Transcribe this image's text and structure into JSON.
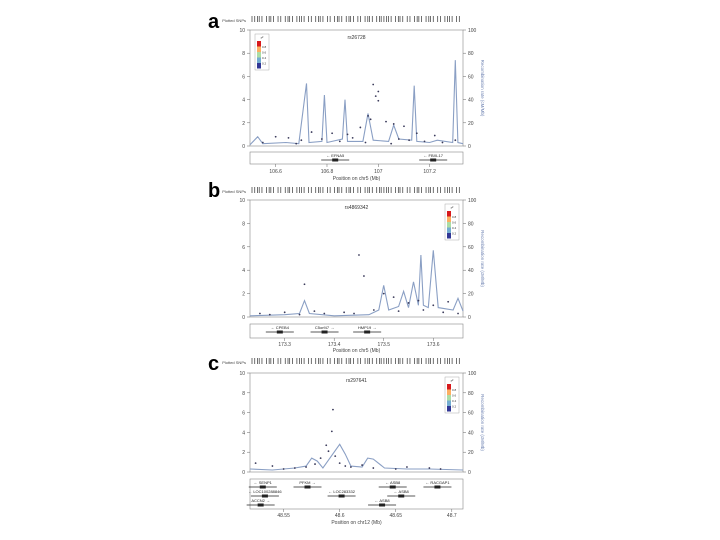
{
  "panels": [
    {
      "letter": "a",
      "snp_label": "Plotted SNPs",
      "lead_snp": "rs26728",
      "y_left_ticks": [
        "0",
        "2",
        "4",
        "6",
        "8",
        "10"
      ],
      "y_right_ticks": [
        "0",
        "20",
        "40",
        "60",
        "80",
        "100"
      ],
      "y_right_label": "Recombination rate (cM/Mb)",
      "legend_title": "r²",
      "legend_ticks": [
        "0.8",
        "0.6",
        "0.4",
        "0.2"
      ],
      "x_ticks": [
        "106.6",
        "106.8",
        "107",
        "107.2"
      ],
      "xlabel": "Position on chr5 (Mb)",
      "genes": [
        {
          "name": "EFNA5",
          "x": 0.4,
          "row": 0,
          "dir": "left"
        },
        {
          "name": "FBXL17",
          "x": 0.86,
          "row": 0,
          "dir": "left"
        }
      ]
    },
    {
      "letter": "b",
      "snp_label": "Plotted SNPs",
      "lead_snp": "rs4869342",
      "y_left_ticks": [
        "0",
        "2",
        "4",
        "6",
        "8",
        "10"
      ],
      "y_right_ticks": [
        "0",
        "20",
        "40",
        "60",
        "80",
        "100"
      ],
      "y_right_label": "Recombination rate (cM/Mb)",
      "legend_title": "r²",
      "legend_ticks": [
        "0.8",
        "0.6",
        "0.4",
        "0.2"
      ],
      "x_ticks": [
        "173.3",
        "173.4",
        "173.5",
        "173.6"
      ],
      "xlabel": "Position on chr5 (Mb)",
      "genes": [
        {
          "name": "CPEB4",
          "x": 0.14,
          "row": 0,
          "dir": "left"
        },
        {
          "name": "C5orf47",
          "x": 0.35,
          "row": 0,
          "dir": "right"
        },
        {
          "name": "HMP19",
          "x": 0.55,
          "row": 0,
          "dir": "right"
        }
      ]
    },
    {
      "letter": "c",
      "snp_label": "Plotted SNPs",
      "lead_snp": "rs297641",
      "y_left_ticks": [
        "0",
        "2",
        "4",
        "6",
        "8",
        "10"
      ],
      "y_right_ticks": [
        "0",
        "20",
        "40",
        "60",
        "80",
        "100"
      ],
      "y_right_label": "Recombination rate (cM/Mb)",
      "legend_title": "r²",
      "legend_ticks": [
        "0.8",
        "0.6",
        "0.4",
        "0.2"
      ],
      "x_ticks": [
        "48.55",
        "48.6",
        "48.65",
        "48.7"
      ],
      "xlabel": "Position on chr12 (Mb)",
      "genes": [
        {
          "name": "SENP1",
          "x": 0.06,
          "row": 0,
          "dir": "left"
        },
        {
          "name": "PFKM",
          "x": 0.27,
          "row": 0,
          "dir": "right"
        },
        {
          "name": "ASB8",
          "x": 0.67,
          "row": 0,
          "dir": "left"
        },
        {
          "name": "RACGAP1",
          "x": 0.88,
          "row": 0,
          "dir": "left"
        },
        {
          "name": "LOC100288846",
          "x": 0.07,
          "row": 1,
          "dir": "left"
        },
        {
          "name": "LOC283332",
          "x": 0.43,
          "row": 1,
          "dir": "left"
        },
        {
          "name": "ASB8",
          "x": 0.71,
          "row": 1,
          "dir": "left"
        },
        {
          "name": "ACCN2",
          "x": 0.05,
          "row": 2,
          "dir": "right"
        },
        {
          "name": "ASB8",
          "x": 0.62,
          "row": 2,
          "dir": "left"
        }
      ]
    }
  ],
  "legend_colors": [
    "#d7191c",
    "#fdae61",
    "#abdda4",
    "#74add1",
    "#313695"
  ],
  "dot_color": "#3a3a5a",
  "line_color": "#8a9fc4",
  "chart_data": [
    {
      "type": "scatter",
      "xlabel": "Position on chr5 (Mb)",
      "xlim": [
        106.5,
        107.33
      ],
      "ylim": [
        0,
        10
      ],
      "y2lim": [
        0,
        100
      ],
      "points": [
        {
          "x": 106.98,
          "y": 5.3
        },
        {
          "x": 107.0,
          "y": 4.7
        },
        {
          "x": 106.99,
          "y": 4.3
        },
        {
          "x": 107.0,
          "y": 3.9
        },
        {
          "x": 106.96,
          "y": 2.6
        },
        {
          "x": 106.97,
          "y": 2.3
        },
        {
          "x": 107.03,
          "y": 2.1
        },
        {
          "x": 107.06,
          "y": 1.9
        },
        {
          "x": 106.93,
          "y": 1.6
        },
        {
          "x": 107.1,
          "y": 1.7
        },
        {
          "x": 106.74,
          "y": 1.2
        },
        {
          "x": 106.82,
          "y": 1.1
        },
        {
          "x": 106.88,
          "y": 1.0
        },
        {
          "x": 107.15,
          "y": 1.1
        },
        {
          "x": 107.22,
          "y": 0.9
        },
        {
          "x": 106.6,
          "y": 0.8
        },
        {
          "x": 106.65,
          "y": 0.7
        },
        {
          "x": 106.7,
          "y": 0.5
        },
        {
          "x": 106.78,
          "y": 0.6
        },
        {
          "x": 106.85,
          "y": 0.4
        },
        {
          "x": 106.9,
          "y": 0.7
        },
        {
          "x": 107.08,
          "y": 0.6
        },
        {
          "x": 107.12,
          "y": 0.5
        },
        {
          "x": 107.18,
          "y": 0.4
        },
        {
          "x": 107.25,
          "y": 0.3
        },
        {
          "x": 107.3,
          "y": 0.5
        },
        {
          "x": 106.55,
          "y": 0.3
        },
        {
          "x": 106.68,
          "y": 0.2
        },
        {
          "x": 106.95,
          "y": 0.3
        },
        {
          "x": 107.05,
          "y": 0.2
        }
      ],
      "recomb": [
        {
          "x": 106.5,
          "y": 1
        },
        {
          "x": 106.53,
          "y": 8
        },
        {
          "x": 106.55,
          "y": 2
        },
        {
          "x": 106.64,
          "y": 3
        },
        {
          "x": 106.69,
          "y": 2
        },
        {
          "x": 106.72,
          "y": 54
        },
        {
          "x": 106.73,
          "y": 3
        },
        {
          "x": 106.78,
          "y": 4
        },
        {
          "x": 106.79,
          "y": 44
        },
        {
          "x": 106.8,
          "y": 3
        },
        {
          "x": 106.86,
          "y": 6
        },
        {
          "x": 106.87,
          "y": 40
        },
        {
          "x": 106.88,
          "y": 4
        },
        {
          "x": 106.94,
          "y": 4
        },
        {
          "x": 106.96,
          "y": 28
        },
        {
          "x": 106.98,
          "y": 5
        },
        {
          "x": 107.04,
          "y": 4
        },
        {
          "x": 107.06,
          "y": 18
        },
        {
          "x": 107.08,
          "y": 6
        },
        {
          "x": 107.13,
          "y": 5
        },
        {
          "x": 107.14,
          "y": 52
        },
        {
          "x": 107.15,
          "y": 4
        },
        {
          "x": 107.2,
          "y": 3
        },
        {
          "x": 107.23,
          "y": 5
        },
        {
          "x": 107.29,
          "y": 3
        },
        {
          "x": 107.3,
          "y": 74
        },
        {
          "x": 107.31,
          "y": 3
        },
        {
          "x": 107.33,
          "y": 2
        }
      ]
    },
    {
      "type": "scatter",
      "xlabel": "Position on chr5 (Mb)",
      "xlim": [
        173.23,
        173.66
      ],
      "ylim": [
        0,
        10
      ],
      "y2lim": [
        0,
        100
      ],
      "points": [
        {
          "x": 173.45,
          "y": 5.3
        },
        {
          "x": 173.46,
          "y": 3.5
        },
        {
          "x": 173.34,
          "y": 2.8
        },
        {
          "x": 173.5,
          "y": 2.0
        },
        {
          "x": 173.52,
          "y": 1.7
        },
        {
          "x": 173.55,
          "y": 1.2
        },
        {
          "x": 173.57,
          "y": 1.4
        },
        {
          "x": 173.6,
          "y": 1.0
        },
        {
          "x": 173.63,
          "y": 1.3
        },
        {
          "x": 173.48,
          "y": 0.6
        },
        {
          "x": 173.42,
          "y": 0.4
        },
        {
          "x": 173.38,
          "y": 0.3
        },
        {
          "x": 173.3,
          "y": 0.4
        },
        {
          "x": 173.27,
          "y": 0.2
        },
        {
          "x": 173.25,
          "y": 0.3
        },
        {
          "x": 173.33,
          "y": 0.2
        },
        {
          "x": 173.36,
          "y": 0.5
        },
        {
          "x": 173.44,
          "y": 0.3
        },
        {
          "x": 173.53,
          "y": 0.5
        },
        {
          "x": 173.58,
          "y": 0.6
        },
        {
          "x": 173.62,
          "y": 0.4
        },
        {
          "x": 173.65,
          "y": 0.3
        }
      ],
      "recomb": [
        {
          "x": 173.23,
          "y": 1
        },
        {
          "x": 173.3,
          "y": 2
        },
        {
          "x": 173.33,
          "y": 3
        },
        {
          "x": 173.34,
          "y": 14
        },
        {
          "x": 173.35,
          "y": 3
        },
        {
          "x": 173.4,
          "y": 1
        },
        {
          "x": 173.47,
          "y": 2
        },
        {
          "x": 173.49,
          "y": 6
        },
        {
          "x": 173.5,
          "y": 27
        },
        {
          "x": 173.51,
          "y": 6
        },
        {
          "x": 173.53,
          "y": 9
        },
        {
          "x": 173.54,
          "y": 22
        },
        {
          "x": 173.55,
          "y": 8
        },
        {
          "x": 173.56,
          "y": 30
        },
        {
          "x": 173.57,
          "y": 10
        },
        {
          "x": 173.575,
          "y": 53
        },
        {
          "x": 173.58,
          "y": 10
        },
        {
          "x": 173.59,
          "y": 8
        },
        {
          "x": 173.6,
          "y": 57
        },
        {
          "x": 173.61,
          "y": 8
        },
        {
          "x": 173.64,
          "y": 6
        },
        {
          "x": 173.65,
          "y": 16
        },
        {
          "x": 173.66,
          "y": 5
        }
      ]
    },
    {
      "type": "scatter",
      "xlabel": "Position on chr12 (Mb)",
      "xlim": [
        48.52,
        48.71
      ],
      "ylim": [
        0,
        10
      ],
      "y2lim": [
        0,
        100
      ],
      "points": [
        {
          "x": 48.594,
          "y": 6.3
        },
        {
          "x": 48.593,
          "y": 4.1
        },
        {
          "x": 48.588,
          "y": 2.7
        },
        {
          "x": 48.59,
          "y": 2.1
        },
        {
          "x": 48.596,
          "y": 1.6
        },
        {
          "x": 48.583,
          "y": 1.4
        },
        {
          "x": 48.578,
          "y": 0.8
        },
        {
          "x": 48.6,
          "y": 0.9
        },
        {
          "x": 48.605,
          "y": 0.6
        },
        {
          "x": 48.57,
          "y": 0.5
        },
        {
          "x": 48.56,
          "y": 0.4
        },
        {
          "x": 48.54,
          "y": 0.6
        },
        {
          "x": 48.525,
          "y": 0.9
        },
        {
          "x": 48.61,
          "y": 0.5
        },
        {
          "x": 48.63,
          "y": 0.4
        },
        {
          "x": 48.65,
          "y": 0.3
        },
        {
          "x": 48.66,
          "y": 0.5
        },
        {
          "x": 48.68,
          "y": 0.4
        },
        {
          "x": 48.69,
          "y": 0.3
        },
        {
          "x": 48.55,
          "y": 0.3
        },
        {
          "x": 48.62,
          "y": 0.7
        }
      ],
      "recomb": [
        {
          "x": 48.52,
          "y": 3
        },
        {
          "x": 48.54,
          "y": 2
        },
        {
          "x": 48.56,
          "y": 4
        },
        {
          "x": 48.57,
          "y": 6
        },
        {
          "x": 48.575,
          "y": 14
        },
        {
          "x": 48.58,
          "y": 11
        },
        {
          "x": 48.585,
          "y": 4
        },
        {
          "x": 48.59,
          "y": 12
        },
        {
          "x": 48.6,
          "y": 28
        },
        {
          "x": 48.605,
          "y": 18
        },
        {
          "x": 48.61,
          "y": 6
        },
        {
          "x": 48.62,
          "y": 5
        },
        {
          "x": 48.625,
          "y": 14
        },
        {
          "x": 48.63,
          "y": 13
        },
        {
          "x": 48.64,
          "y": 4
        },
        {
          "x": 48.66,
          "y": 3
        },
        {
          "x": 48.68,
          "y": 3
        },
        {
          "x": 48.71,
          "y": 2
        }
      ]
    }
  ]
}
